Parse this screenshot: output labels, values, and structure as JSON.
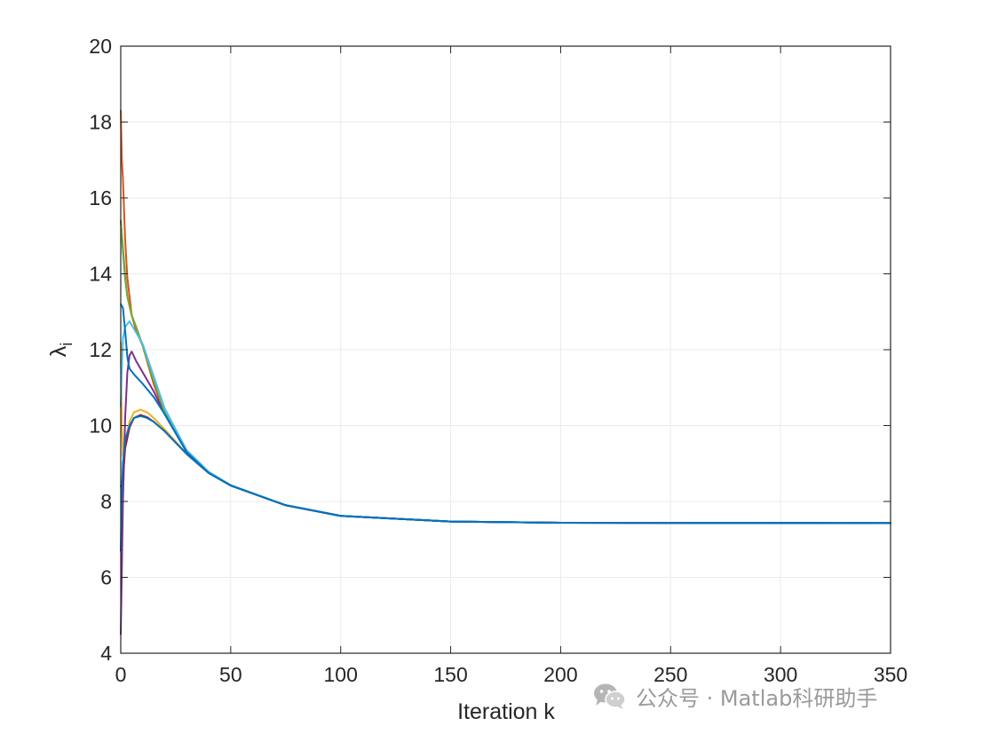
{
  "chart_data": {
    "type": "line",
    "title": "",
    "xlabel": "Iteration k",
    "ylabel_symbol": "λ",
    "ylabel_subscript": "i",
    "xlim": [
      0,
      350
    ],
    "ylim": [
      4,
      20
    ],
    "xticks": [
      0,
      50,
      100,
      150,
      200,
      250,
      300,
      350
    ],
    "yticks": [
      4,
      6,
      8,
      10,
      12,
      14,
      16,
      18,
      20
    ],
    "grid": true,
    "legend": "none",
    "converged_value": 7.43,
    "series": [
      {
        "color": "#0072BD",
        "values": [
          [
            0,
            15.4
          ],
          [
            1,
            14.6
          ],
          [
            2,
            13.9
          ],
          [
            3,
            13.4
          ],
          [
            5,
            12.9
          ],
          [
            7,
            12.6
          ],
          [
            10,
            12.1
          ],
          [
            15,
            11.1
          ],
          [
            20,
            10.3
          ],
          [
            30,
            9.3
          ],
          [
            40,
            8.75
          ],
          [
            50,
            8.42
          ],
          [
            75,
            7.9
          ],
          [
            100,
            7.62
          ],
          [
            150,
            7.47
          ],
          [
            200,
            7.44
          ],
          [
            250,
            7.43
          ],
          [
            300,
            7.43
          ],
          [
            350,
            7.43
          ]
        ]
      },
      {
        "color": "#D95319",
        "values": [
          [
            0,
            18.3
          ],
          [
            0.5,
            17.0
          ],
          [
            1,
            16.5
          ],
          [
            2,
            14.9
          ],
          [
            3,
            13.9
          ],
          [
            5,
            12.9
          ],
          [
            7,
            12.5
          ],
          [
            10,
            12.1
          ],
          [
            15,
            11.1
          ],
          [
            20,
            10.3
          ],
          [
            30,
            9.3
          ],
          [
            40,
            8.75
          ],
          [
            50,
            8.42
          ],
          [
            75,
            7.9
          ],
          [
            100,
            7.62
          ],
          [
            150,
            7.47
          ],
          [
            200,
            7.44
          ],
          [
            350,
            7.43
          ]
        ]
      },
      {
        "color": "#EDB120",
        "values": [
          [
            0,
            12.2
          ],
          [
            0.5,
            10.0
          ],
          [
            1,
            9.2
          ],
          [
            2,
            9.6
          ],
          [
            4,
            10.1
          ],
          [
            6,
            10.35
          ],
          [
            9,
            10.42
          ],
          [
            12,
            10.35
          ],
          [
            15,
            10.2
          ],
          [
            20,
            9.9
          ],
          [
            30,
            9.25
          ],
          [
            40,
            8.75
          ],
          [
            50,
            8.42
          ],
          [
            75,
            7.9
          ],
          [
            100,
            7.62
          ],
          [
            150,
            7.47
          ],
          [
            200,
            7.44
          ],
          [
            350,
            7.43
          ]
        ]
      },
      {
        "color": "#7E2F8E",
        "values": [
          [
            0,
            4.5
          ],
          [
            0.5,
            6.2
          ],
          [
            1,
            8.0
          ],
          [
            2,
            10.2
          ],
          [
            3,
            11.4
          ],
          [
            4,
            11.85
          ],
          [
            5,
            11.95
          ],
          [
            7,
            11.7
          ],
          [
            10,
            11.4
          ],
          [
            15,
            10.9
          ],
          [
            20,
            10.3
          ],
          [
            30,
            9.3
          ],
          [
            40,
            8.75
          ],
          [
            50,
            8.42
          ],
          [
            75,
            7.9
          ],
          [
            100,
            7.62
          ],
          [
            150,
            7.47
          ],
          [
            200,
            7.44
          ],
          [
            350,
            7.43
          ]
        ]
      },
      {
        "color": "#77AC30",
        "values": [
          [
            0,
            15.4
          ],
          [
            1,
            14.7
          ],
          [
            2,
            14.0
          ],
          [
            3,
            13.4
          ],
          [
            5,
            12.9
          ],
          [
            7,
            12.6
          ],
          [
            10,
            12.1
          ],
          [
            15,
            11.2
          ],
          [
            20,
            10.35
          ],
          [
            30,
            9.3
          ],
          [
            40,
            8.75
          ],
          [
            50,
            8.42
          ],
          [
            75,
            7.9
          ],
          [
            100,
            7.62
          ],
          [
            150,
            7.47
          ],
          [
            200,
            7.44
          ],
          [
            350,
            7.43
          ]
        ]
      },
      {
        "color": "#4DBEEE",
        "values": [
          [
            0,
            10.5
          ],
          [
            0.5,
            11.5
          ],
          [
            1,
            12.3
          ],
          [
            2,
            12.6
          ],
          [
            4,
            12.75
          ],
          [
            6,
            12.55
          ],
          [
            10,
            12.15
          ],
          [
            15,
            11.3
          ],
          [
            20,
            10.45
          ],
          [
            30,
            9.35
          ],
          [
            40,
            8.78
          ],
          [
            50,
            8.43
          ],
          [
            75,
            7.9
          ],
          [
            100,
            7.62
          ],
          [
            150,
            7.47
          ],
          [
            200,
            7.44
          ],
          [
            350,
            7.43
          ]
        ]
      },
      {
        "color": "#A2142F",
        "values": [
          [
            0,
            8.4
          ],
          [
            1,
            8.6
          ],
          [
            2,
            9.4
          ],
          [
            4,
            9.95
          ],
          [
            6,
            10.2
          ],
          [
            9,
            10.28
          ],
          [
            12,
            10.22
          ],
          [
            15,
            10.1
          ],
          [
            20,
            9.85
          ],
          [
            30,
            9.25
          ],
          [
            40,
            8.75
          ],
          [
            50,
            8.42
          ],
          [
            75,
            7.9
          ],
          [
            100,
            7.62
          ],
          [
            150,
            7.47
          ],
          [
            200,
            7.44
          ],
          [
            350,
            7.43
          ]
        ]
      },
      {
        "color": "#0072BD",
        "values": [
          [
            0,
            6.7
          ],
          [
            0.5,
            8.3
          ],
          [
            1,
            9.0
          ],
          [
            2,
            9.6
          ],
          [
            4,
            10.0
          ],
          [
            6,
            10.2
          ],
          [
            9,
            10.25
          ],
          [
            12,
            10.2
          ],
          [
            15,
            10.1
          ],
          [
            20,
            9.85
          ],
          [
            30,
            9.25
          ],
          [
            40,
            8.75
          ],
          [
            50,
            8.42
          ],
          [
            75,
            7.9
          ],
          [
            100,
            7.62
          ],
          [
            150,
            7.47
          ],
          [
            200,
            7.44
          ],
          [
            350,
            7.43
          ]
        ]
      },
      {
        "color": "#0072BD",
        "values": [
          [
            0,
            13.2
          ],
          [
            1,
            13.1
          ],
          [
            2,
            12.5
          ],
          [
            3,
            11.8
          ],
          [
            4,
            11.5
          ],
          [
            6,
            11.35
          ],
          [
            10,
            11.1
          ],
          [
            15,
            10.75
          ],
          [
            20,
            10.3
          ],
          [
            30,
            9.3
          ],
          [
            40,
            8.75
          ],
          [
            50,
            8.42
          ],
          [
            75,
            7.9
          ],
          [
            100,
            7.62
          ],
          [
            150,
            7.47
          ],
          [
            200,
            7.44
          ],
          [
            350,
            7.43
          ]
        ]
      }
    ]
  },
  "watermark": {
    "text": "公众号 · Matlab科研助手",
    "icon": "wechat-icon"
  }
}
